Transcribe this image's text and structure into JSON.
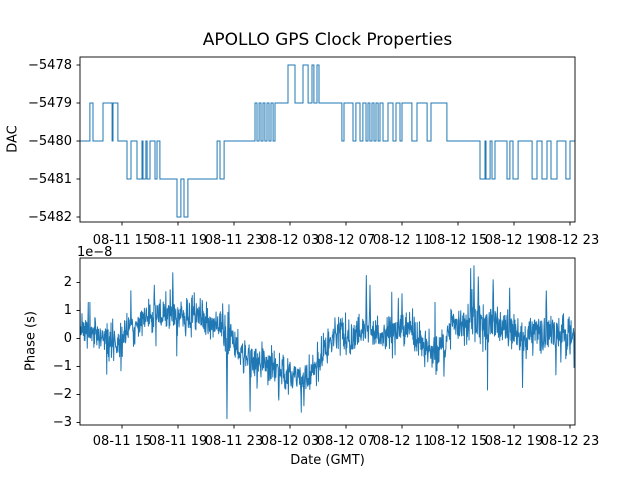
{
  "figure": {
    "title": "APOLLO GPS Clock Properties",
    "background": "#ffffff"
  },
  "colors": {
    "line": "#1f77b4",
    "spine": "#000000",
    "text": "#000000"
  },
  "x_axis": {
    "label": "Date (GMT)",
    "tick_labels": [
      "08-11 15",
      "08-11 19",
      "08-11 23",
      "08-12 03",
      "08-12 07",
      "08-12 11",
      "08-12 15",
      "08-12 19",
      "08-12 23"
    ],
    "tick_hours": [
      3,
      7,
      11,
      15,
      19,
      23,
      27,
      31,
      35
    ],
    "range_hours": [
      0,
      35.36
    ]
  },
  "chart_data": [
    {
      "type": "line",
      "subplot": "top",
      "series_name": "DAC",
      "ylabel": "DAC",
      "line_style": "step-post",
      "ytick_labels": [
        "−5478",
        "−5479",
        "−5480",
        "−5481",
        "−5482"
      ],
      "ytick_values": [
        -5478,
        -5479,
        -5480,
        -5481,
        -5482
      ],
      "ylim": [
        -5482.13,
        -5477.87
      ],
      "x_tick_hours": [
        3,
        7,
        11,
        15,
        19,
        23,
        27,
        31,
        35
      ],
      "x_tick_labels": [
        "08-11 15",
        "08-11 19",
        "08-11 23",
        "08-12 03",
        "08-12 07",
        "08-12 11",
        "08-12 15",
        "08-12 19",
        "08-12 23"
      ],
      "end_hours": 35.36,
      "steps_hours_value": [
        [
          0,
          -5480
        ],
        [
          0.71,
          -5479
        ],
        [
          0.93,
          -5480
        ],
        [
          1.64,
          -5479
        ],
        [
          2.29,
          -5480
        ],
        [
          2.36,
          -5479
        ],
        [
          2.71,
          -5480
        ],
        [
          3.36,
          -5481
        ],
        [
          3.64,
          -5480
        ],
        [
          4.07,
          -5481
        ],
        [
          4.43,
          -5480
        ],
        [
          4.5,
          -5481
        ],
        [
          4.71,
          -5480
        ],
        [
          4.79,
          -5481
        ],
        [
          5,
          -5480
        ],
        [
          5.36,
          -5481
        ],
        [
          5.5,
          -5480
        ],
        [
          5.71,
          -5481
        ],
        [
          6.93,
          -5482
        ],
        [
          7.21,
          -5481
        ],
        [
          7.43,
          -5482
        ],
        [
          7.71,
          -5481
        ],
        [
          9.79,
          -5480
        ],
        [
          10,
          -5481
        ],
        [
          10.29,
          -5480
        ],
        [
          12.5,
          -5479
        ],
        [
          12.64,
          -5480
        ],
        [
          12.79,
          -5479
        ],
        [
          12.93,
          -5480
        ],
        [
          13.07,
          -5479
        ],
        [
          13.21,
          -5480
        ],
        [
          13.36,
          -5479
        ],
        [
          13.5,
          -5480
        ],
        [
          13.64,
          -5479
        ],
        [
          13.79,
          -5480
        ],
        [
          13.93,
          -5479
        ],
        [
          14.86,
          -5478
        ],
        [
          15.36,
          -5479
        ],
        [
          15.93,
          -5478
        ],
        [
          16.29,
          -5479
        ],
        [
          16.57,
          -5478
        ],
        [
          16.71,
          -5479
        ],
        [
          16.93,
          -5478
        ],
        [
          17.07,
          -5479
        ],
        [
          18.71,
          -5480
        ],
        [
          18.86,
          -5479
        ],
        [
          19.5,
          -5480
        ],
        [
          19.71,
          -5479
        ],
        [
          20,
          -5480
        ],
        [
          20.21,
          -5479
        ],
        [
          20.43,
          -5480
        ],
        [
          20.57,
          -5479
        ],
        [
          20.71,
          -5480
        ],
        [
          20.86,
          -5479
        ],
        [
          21,
          -5480
        ],
        [
          21.14,
          -5479
        ],
        [
          21.29,
          -5480
        ],
        [
          21.43,
          -5479
        ],
        [
          21.64,
          -5480
        ],
        [
          22,
          -5479
        ],
        [
          22.36,
          -5480
        ],
        [
          22.57,
          -5479
        ],
        [
          22.86,
          -5480
        ],
        [
          23,
          -5479
        ],
        [
          23.71,
          -5480
        ],
        [
          24.07,
          -5479
        ],
        [
          24.79,
          -5480
        ],
        [
          25.07,
          -5479
        ],
        [
          26.21,
          -5480
        ],
        [
          28.57,
          -5481
        ],
        [
          28.93,
          -5480
        ],
        [
          29,
          -5481
        ],
        [
          29.29,
          -5480
        ],
        [
          29.43,
          -5481
        ],
        [
          29.64,
          -5480
        ],
        [
          30.5,
          -5481
        ],
        [
          30.71,
          -5480
        ],
        [
          30.93,
          -5481
        ],
        [
          31.29,
          -5480
        ],
        [
          32.29,
          -5481
        ],
        [
          32.64,
          -5480
        ],
        [
          33,
          -5481
        ],
        [
          33.36,
          -5480
        ],
        [
          33.64,
          -5481
        ],
        [
          34.07,
          -5480
        ],
        [
          34.71,
          -5481
        ],
        [
          35,
          -5480
        ]
      ]
    },
    {
      "type": "line",
      "subplot": "bottom",
      "series_name": "Phase",
      "ylabel": "Phase (s)",
      "xlabel": "Date (GMT)",
      "y_offset_label": "1e−8",
      "units": "1e-8 s",
      "ytick_labels": [
        "2",
        "1",
        "0",
        "−1",
        "−2",
        "−3"
      ],
      "ytick_values": [
        2,
        1,
        0,
        -1,
        -2,
        -3
      ],
      "ylim": [
        -3.09,
        2.88
      ],
      "x_tick_hours": [
        3,
        7,
        11,
        15,
        19,
        23,
        27,
        31,
        35
      ],
      "x_tick_labels": [
        "08-11 15",
        "08-11 19",
        "08-11 23",
        "08-12 03",
        "08-12 07",
        "08-12 11",
        "08-12 15",
        "08-12 19",
        "08-12 23"
      ],
      "end_hours": 35.36,
      "trend_hours_value": [
        [
          0,
          0.4
        ],
        [
          1,
          0.25
        ],
        [
          2,
          -0.1
        ],
        [
          2.6,
          -0.2
        ],
        [
          3.2,
          0.1
        ],
        [
          4.2,
          0.6
        ],
        [
          5,
          0.75
        ],
        [
          6,
          0.8
        ],
        [
          6.6,
          0.9
        ],
        [
          7.4,
          0.7
        ],
        [
          8.4,
          0.85
        ],
        [
          9.2,
          0.65
        ],
        [
          10,
          0.4
        ],
        [
          10.8,
          -0.05
        ],
        [
          11.6,
          -0.55
        ],
        [
          12.4,
          -0.9
        ],
        [
          13.2,
          -1
        ],
        [
          14.2,
          -1.1
        ],
        [
          15.2,
          -1.3
        ],
        [
          15.9,
          -1.45
        ],
        [
          16.6,
          -1.25
        ],
        [
          17.2,
          -0.8
        ],
        [
          17.8,
          -0.2
        ],
        [
          18.4,
          0.25
        ],
        [
          19.2,
          0.1
        ],
        [
          20,
          0.2
        ],
        [
          20.6,
          0.35
        ],
        [
          21.4,
          0.1
        ],
        [
          22.2,
          0.25
        ],
        [
          23,
          0.35
        ],
        [
          23.8,
          0.25
        ],
        [
          24.6,
          -0.35
        ],
        [
          25.4,
          -0.45
        ],
        [
          26.1,
          -0.3
        ],
        [
          26.5,
          0.55
        ],
        [
          27.2,
          0.45
        ],
        [
          28,
          0.6
        ],
        [
          28.8,
          0.55
        ],
        [
          29.6,
          0.5
        ],
        [
          30.4,
          0.4
        ],
        [
          31.2,
          0.1
        ],
        [
          31.8,
          -0.05
        ],
        [
          32.4,
          0.25
        ],
        [
          33,
          0.1
        ],
        [
          33.6,
          0.3
        ],
        [
          34.2,
          0.05
        ],
        [
          34.8,
          0.15
        ],
        [
          35.36,
          0.1
        ]
      ],
      "spikes_hours_value": [
        [
          5.3,
          1.9
        ],
        [
          6.64,
          2.35
        ],
        [
          10.5,
          -2.86
        ],
        [
          12.15,
          -2.6
        ],
        [
          14.2,
          -2.2
        ],
        [
          16,
          -2.4
        ],
        [
          20.45,
          2.25
        ],
        [
          20.7,
          1.9
        ],
        [
          23,
          1.6
        ],
        [
          26,
          -1.35
        ],
        [
          27.9,
          2.5
        ],
        [
          28.15,
          2.6
        ],
        [
          28.45,
          2.2
        ],
        [
          29.5,
          2.1
        ],
        [
          30.7,
          1.8
        ],
        [
          31.6,
          -1.75
        ],
        [
          33.3,
          1.7
        ],
        [
          34,
          -1.3
        ]
      ],
      "noise_sigma": 0.33,
      "n_points": 1500,
      "seed": 7
    }
  ]
}
